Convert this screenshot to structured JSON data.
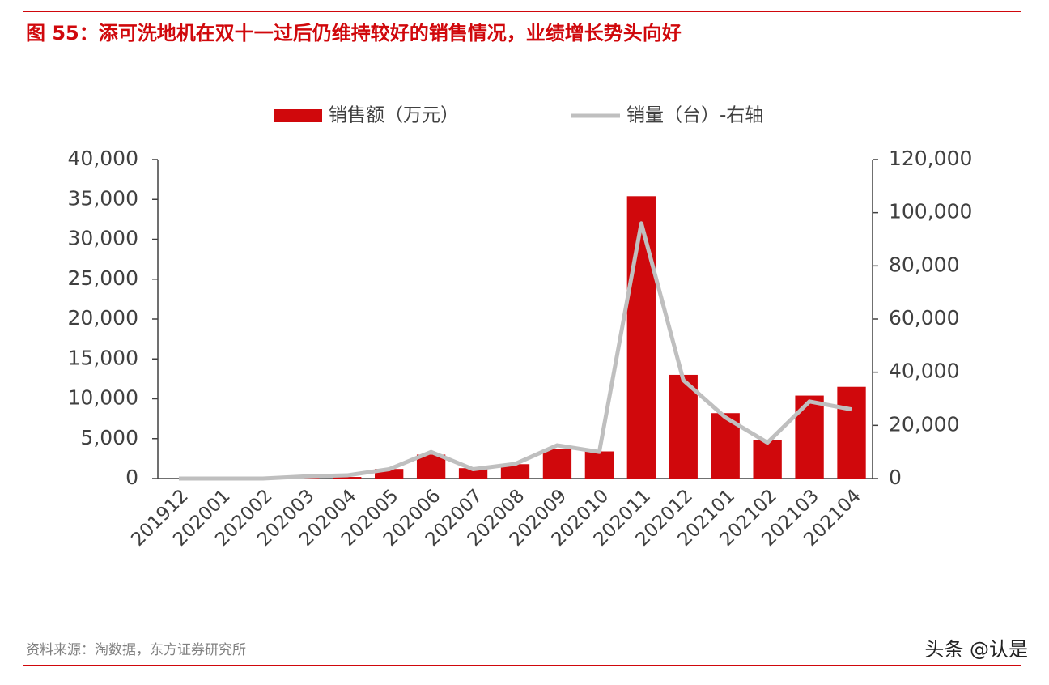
{
  "chart_data": {
    "type": "bar",
    "title": "图 55：添可洗地机在双十一过后仍维持较好的销售情况，业绩增长势头向好",
    "source": "资料来源：淘数据，东方证券研究所",
    "watermark": "头条 @认是",
    "categories": [
      "201912",
      "202001",
      "202002",
      "202003",
      "202004",
      "202005",
      "202006",
      "202007",
      "202008",
      "202009",
      "202010",
      "202011",
      "202012",
      "202101",
      "202102",
      "202103",
      "202104"
    ],
    "series": [
      {
        "name": "销售额（万元）",
        "type": "bar",
        "color": "#d0080c",
        "values": [
          0,
          0,
          0,
          100,
          200,
          1200,
          3000,
          1300,
          1800,
          3700,
          3400,
          35400,
          13000,
          8200,
          4800,
          10400,
          11500
        ]
      },
      {
        "name": "销量（台）-右轴",
        "type": "line",
        "axis": "y2",
        "color": "#bfbfbf",
        "values": [
          0,
          0,
          0,
          800,
          1200,
          3500,
          10000,
          3500,
          5500,
          12500,
          10000,
          96000,
          37000,
          23000,
          13500,
          29000,
          26000
        ]
      }
    ],
    "ylim": [
      0,
      40000
    ],
    "yticks": [
      0,
      {
        "value": 5000,
        "label": "5,000"
      },
      {
        "value": 10000,
        "label": "10,000"
      },
      {
        "value": 15000,
        "label": "15,000"
      },
      {
        "value": 20000,
        "label": "20,000"
      },
      {
        "value": 25000,
        "label": "25,000"
      },
      {
        "value": 30000,
        "label": "30,000"
      },
      {
        "value": 35000,
        "label": "35,000"
      },
      {
        "value": 40000,
        "label": "40,000"
      }
    ],
    "y2lim": [
      0,
      120000
    ],
    "y2ticks": [
      0,
      {
        "value": 20000,
        "label": "20,000"
      },
      {
        "value": 40000,
        "label": "40,000"
      },
      {
        "value": 60000,
        "label": "60,000"
      },
      {
        "value": 80000,
        "label": "80,000"
      },
      {
        "value": 100000,
        "label": "100,000"
      },
      {
        "value": 120000,
        "label": "120,000"
      }
    ]
  }
}
